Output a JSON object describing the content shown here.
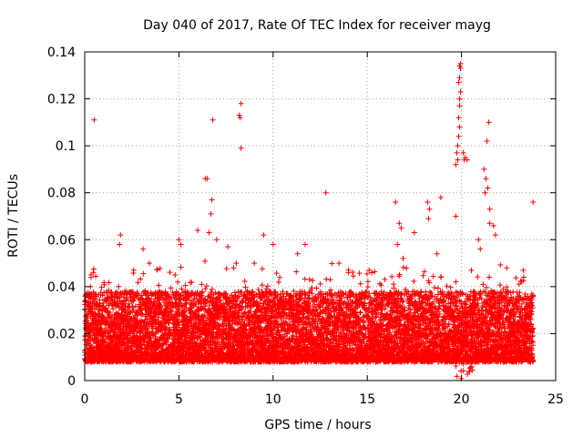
{
  "chart_data": {
    "type": "scatter",
    "title": "Day 040 of 2017, Rate Of TEC Index for receiver mayg",
    "xlabel": "GPS time / hours",
    "ylabel": "ROTI / TECUs",
    "xlim": [
      0,
      25
    ],
    "ylim": [
      0,
      0.14
    ],
    "x_ticks": [
      0,
      5,
      10,
      15,
      20,
      25
    ],
    "x_tick_labels": [
      "0",
      "5",
      "10",
      "15",
      "20",
      "25"
    ],
    "y_ticks": [
      0,
      0.02,
      0.04,
      0.06,
      0.08,
      0.1,
      0.12,
      0.14
    ],
    "y_tick_labels": [
      "0",
      "0.02",
      "0.04",
      "0.06",
      "0.08",
      "0.1",
      "0.12",
      "0.14"
    ],
    "grid": true,
    "marker": "+",
    "color": "#ff0000",
    "series": [
      {
        "name": "ROTI",
        "outliers": [
          [
            0.5,
            0.111
          ],
          [
            0.45,
            0.046
          ],
          [
            1.9,
            0.062
          ],
          [
            1.85,
            0.058
          ],
          [
            3.1,
            0.056
          ],
          [
            5.0,
            0.06
          ],
          [
            5.1,
            0.058
          ],
          [
            6.0,
            0.064
          ],
          [
            6.4,
            0.086
          ],
          [
            6.5,
            0.086
          ],
          [
            6.8,
            0.111
          ],
          [
            6.75,
            0.077
          ],
          [
            6.7,
            0.071
          ],
          [
            6.6,
            0.063
          ],
          [
            7.0,
            0.06
          ],
          [
            8.2,
            0.113
          ],
          [
            8.3,
            0.118
          ],
          [
            8.25,
            0.112
          ],
          [
            8.3,
            0.099
          ],
          [
            7.6,
            0.057
          ],
          [
            9.5,
            0.062
          ],
          [
            10.0,
            0.058
          ],
          [
            11.7,
            0.058
          ],
          [
            12.8,
            0.08
          ],
          [
            16.5,
            0.076
          ],
          [
            16.7,
            0.067
          ],
          [
            16.8,
            0.065
          ],
          [
            16.6,
            0.058
          ],
          [
            17.5,
            0.063
          ],
          [
            18.2,
            0.076
          ],
          [
            18.3,
            0.073
          ],
          [
            18.25,
            0.069
          ],
          [
            18.9,
            0.078
          ],
          [
            19.7,
            0.092
          ],
          [
            19.8,
            0.094
          ],
          [
            19.75,
            0.097
          ],
          [
            19.8,
            0.1
          ],
          [
            19.85,
            0.104
          ],
          [
            19.9,
            0.108
          ],
          [
            19.85,
            0.112
          ],
          [
            19.9,
            0.117
          ],
          [
            19.9,
            0.12
          ],
          [
            19.95,
            0.123
          ],
          [
            19.85,
            0.127
          ],
          [
            19.9,
            0.129
          ],
          [
            19.9,
            0.134
          ],
          [
            19.95,
            0.135
          ],
          [
            19.95,
            0.133
          ],
          [
            19.7,
            0.07
          ],
          [
            20.2,
            0.095
          ],
          [
            20.1,
            0.097
          ],
          [
            20.3,
            0.094
          ],
          [
            20.15,
            0.094
          ],
          [
            21.0,
            0.056
          ],
          [
            21.2,
            0.09
          ],
          [
            21.3,
            0.086
          ],
          [
            21.25,
            0.08
          ],
          [
            21.4,
            0.082
          ],
          [
            21.35,
            0.102
          ],
          [
            21.45,
            0.11
          ],
          [
            21.5,
            0.073
          ],
          [
            21.5,
            0.067
          ],
          [
            21.7,
            0.066
          ],
          [
            21.8,
            0.062
          ],
          [
            20.9,
            0.06
          ],
          [
            23.8,
            0.076
          ],
          [
            23.3,
            0.044
          ],
          [
            0.3,
            0.04
          ],
          [
            2.6,
            0.047
          ],
          [
            4.8,
            0.045
          ],
          [
            7.9,
            0.048
          ],
          [
            9.0,
            0.05
          ],
          [
            11.3,
            0.054
          ],
          [
            13.5,
            0.05
          ],
          [
            14.0,
            0.046
          ],
          [
            15.1,
            0.047
          ],
          [
            16.9,
            0.052
          ],
          [
            18.7,
            0.054
          ],
          [
            22.4,
            0.048
          ]
        ]
      }
    ]
  }
}
